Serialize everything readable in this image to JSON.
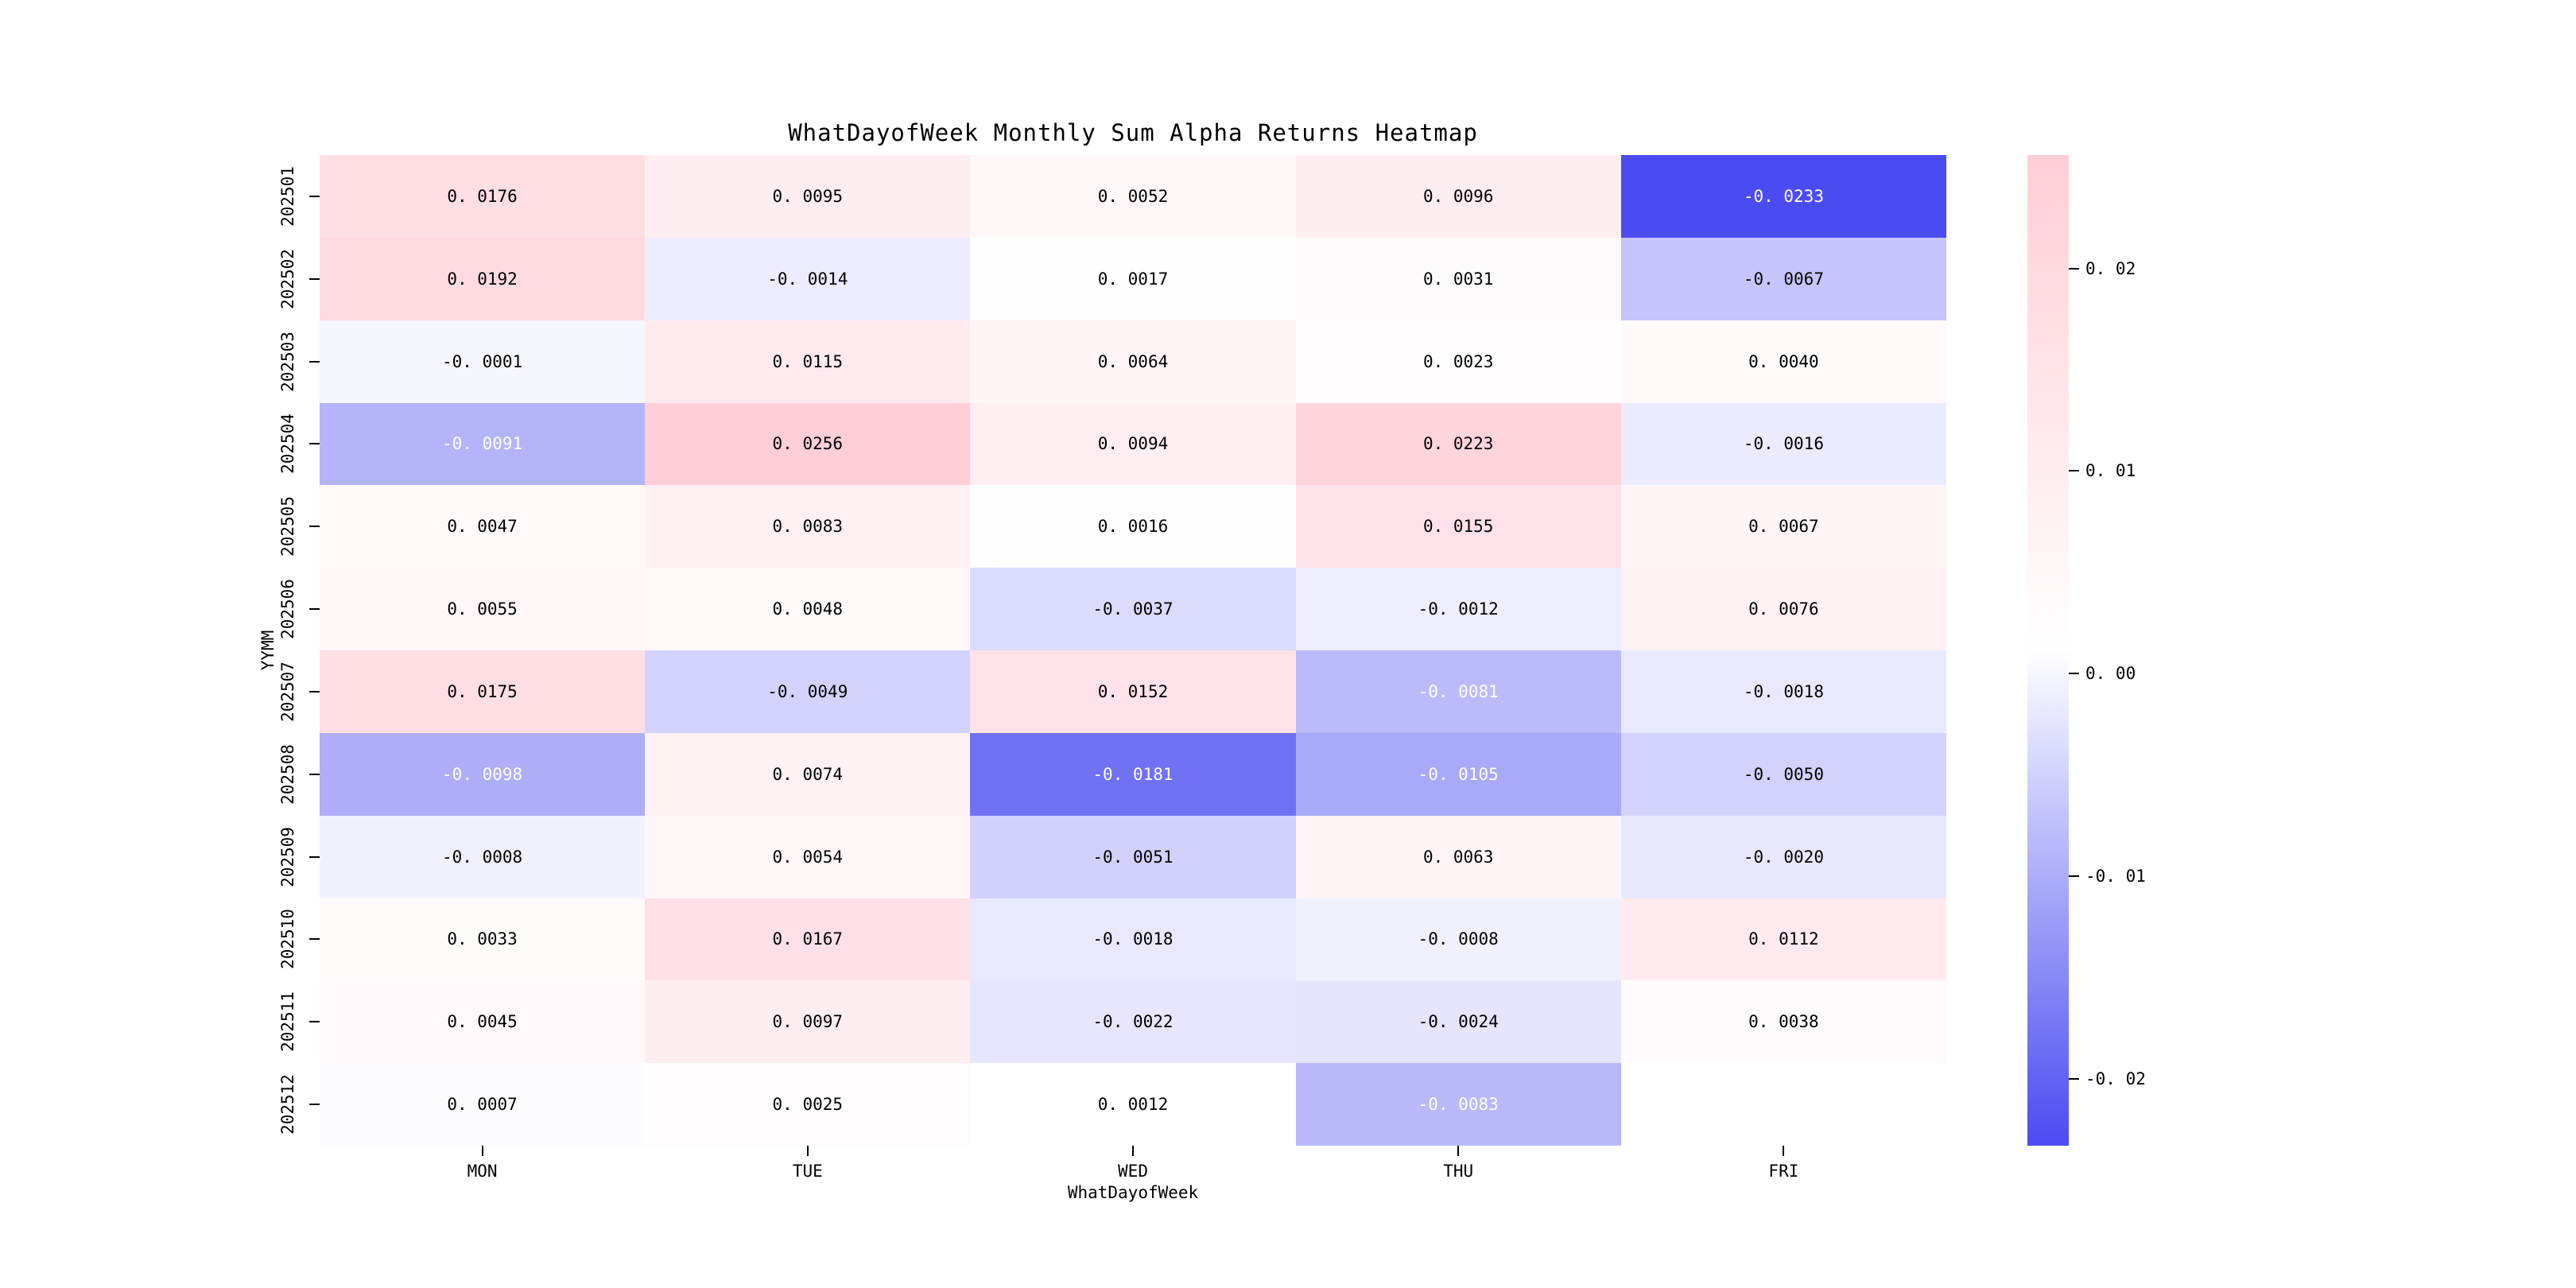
{
  "chart_data": {
    "type": "heatmap",
    "title": "WhatDayofWeek Monthly Sum Alpha Returns Heatmap",
    "xlabel": "WhatDayofWeek",
    "ylabel": "YYMM",
    "x_categories": [
      "MON",
      "TUE",
      "WED",
      "THU",
      "FRI"
    ],
    "y_categories": [
      "202501",
      "202502",
      "202503",
      "202504",
      "202505",
      "202506",
      "202507",
      "202508",
      "202509",
      "202510",
      "202511",
      "202512"
    ],
    "values": [
      [
        0.0176,
        0.0095,
        0.0052,
        0.0096,
        -0.0233
      ],
      [
        0.0192,
        -0.0014,
        0.0017,
        0.0031,
        -0.0067
      ],
      [
        -0.0001,
        0.0115,
        0.0064,
        0.0023,
        0.004
      ],
      [
        -0.0091,
        0.0256,
        0.0094,
        0.0223,
        -0.0016
      ],
      [
        0.0047,
        0.0083,
        0.0016,
        0.0155,
        0.0067
      ],
      [
        0.0055,
        0.0048,
        -0.0037,
        -0.0012,
        0.0076
      ],
      [
        0.0175,
        -0.0049,
        0.0152,
        -0.0081,
        -0.0018
      ],
      [
        -0.0098,
        0.0074,
        -0.0181,
        -0.0105,
        -0.005
      ],
      [
        -0.0008,
        0.0054,
        -0.0051,
        0.0063,
        -0.002
      ],
      [
        0.0033,
        0.0167,
        -0.0018,
        -0.0008,
        0.0112
      ],
      [
        0.0045,
        0.0097,
        -0.0022,
        -0.0024,
        0.0038
      ],
      [
        0.0007,
        0.0025,
        0.0012,
        -0.0083,
        null
      ]
    ],
    "vmin": -0.0233,
    "vmax": 0.0256,
    "annot_decimals": 4,
    "grid": false,
    "legend_position": "right-colorbar",
    "colorbar_ticks": [
      0.02,
      0.01,
      0.0,
      -0.01,
      -0.02
    ],
    "colorbar_tick_labels": [
      "0. 02",
      "0. 01",
      "0. 00",
      "-0. 01",
      "-0. 02"
    ],
    "colors": {
      "min_blue": "#4B4BF2",
      "mid_white": "#FFFFFF",
      "max_pink": "#FFCED7",
      "annot_dark": "#000000",
      "annot_light": "#FFFFFF",
      "background": "#FFFFFF"
    }
  }
}
